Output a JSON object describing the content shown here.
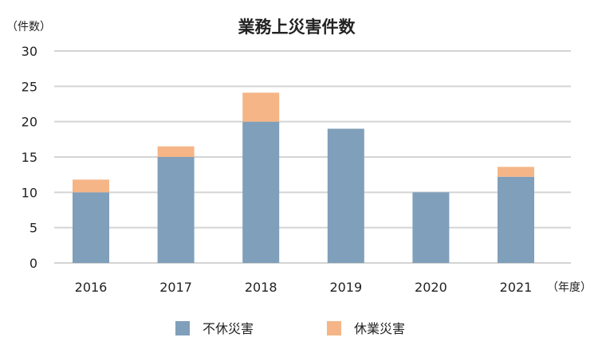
{
  "chart_data": {
    "type": "bar",
    "stacked": true,
    "title": "業務上災害件数",
    "ylabel": "（件数）",
    "xlabel": "（年度）",
    "categories": [
      "2016",
      "2017",
      "2018",
      "2019",
      "2020",
      "2021"
    ],
    "series": [
      {
        "name": "不休災害",
        "color": "#7f9fba",
        "values": [
          10,
          15,
          20,
          19,
          10,
          12.2
        ]
      },
      {
        "name": "休業災害",
        "color": "#f5b587",
        "values": [
          1.8,
          1.5,
          4.1,
          0,
          0,
          1.4
        ]
      }
    ],
    "ylim": [
      0,
      30
    ],
    "yticks": [
      0,
      5,
      10,
      15,
      20,
      25,
      30
    ],
    "grid": true,
    "legend": "bottom"
  }
}
